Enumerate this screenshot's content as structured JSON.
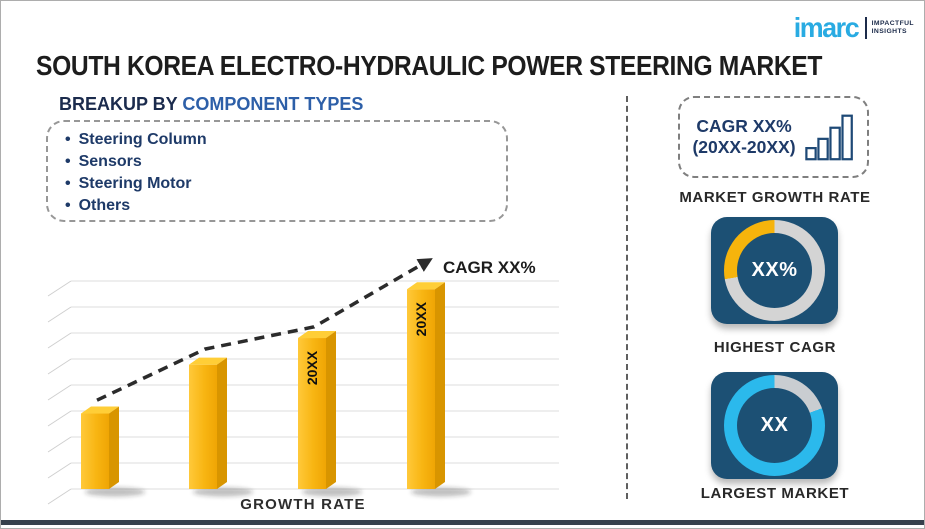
{
  "page": {
    "title": "SOUTH KOREA ELECTRO-HYDRAULIC POWER STEERING MARKET"
  },
  "logo": {
    "brand": "imarc",
    "tagline": [
      "IMPACTFUL",
      "INSIGHTS"
    ],
    "brand_color": "#29ABE2",
    "tagline_color": "#1C2B4A"
  },
  "breakup": {
    "heading_prefix": "BREAKUP BY",
    "heading_highlight": "COMPONENT TYPES",
    "items": [
      "Steering Column",
      "Sensors",
      "Steering Motor",
      "Others"
    ]
  },
  "chart_data": {
    "type": "bar",
    "title": "",
    "categories": [
      "",
      "",
      "20XX",
      "20XX"
    ],
    "values": [
      34,
      56,
      68,
      90
    ],
    "ylim": [
      0,
      100
    ],
    "xlabel": "GROWTH RATE",
    "ylabel": "",
    "grid": true,
    "legend": false,
    "bar_color": "#F7B30E",
    "bar_style": "3d-gold",
    "trend_line": {
      "label": "CAGR XX%",
      "style": "dashed_arrow",
      "color": "#2B2B2B",
      "values": [
        40,
        63,
        73,
        103
      ]
    }
  },
  "sidebar": {
    "growth_box": {
      "line1": "CAGR XX%",
      "line2": "(20XX-20XX)",
      "caption": "MARKET GROWTH RATE",
      "icon": "ascending-bars-icon"
    },
    "highest_cagr": {
      "value": "XX%",
      "caption": "HIGHEST CAGR",
      "ring": {
        "accent": "#F6B40C",
        "base": "#D4D4D4",
        "accent_from_deg": 260,
        "accent_to_deg": 360
      }
    },
    "largest_market": {
      "value": "XX",
      "caption": "LARGEST MARKET",
      "ring": {
        "accent": "#2BB9EC",
        "base": "#C9CDD1",
        "accent_from_deg": 0,
        "accent_to_deg": 70,
        "accent_is_base": true
      }
    }
  },
  "colors": {
    "tile_bg": "#1C5074",
    "navy_text": "#1E3A68",
    "heading_dark": "#1B2B4D",
    "heading_blue": "#2D5FA8",
    "bottom_bar": "#36404C"
  }
}
